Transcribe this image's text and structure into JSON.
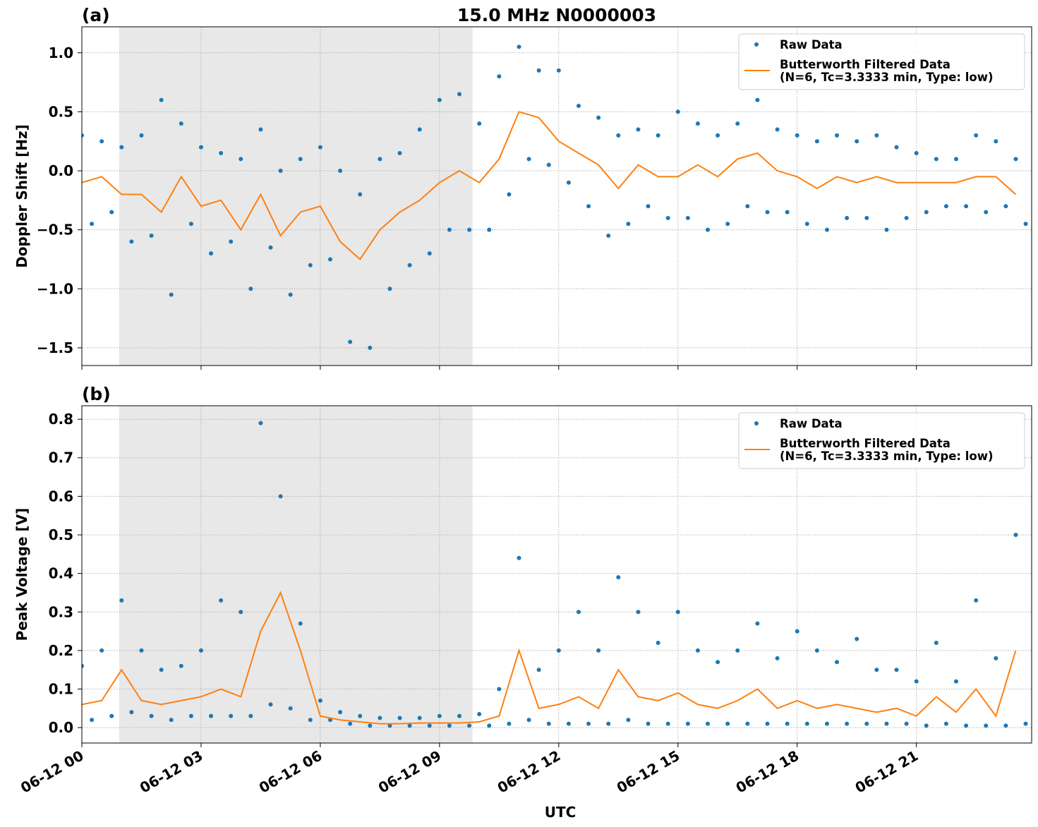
{
  "chart_data": [
    {
      "type": "scatter",
      "title": "15.0 MHz N0000003",
      "panel_label": "(a)",
      "ylabel": "Doppler Shift [Hz]",
      "xlim": [
        0,
        23.9
      ],
      "ylim": [
        -1.65,
        1.22
      ],
      "grid": true,
      "legend": "upper right",
      "shade": [
        0.94,
        9.83
      ],
      "xticks": [
        0,
        3,
        6,
        9,
        12,
        15,
        18,
        21
      ],
      "yticks": [
        {
          "value": -1.5,
          "label": "−1.5"
        },
        {
          "value": -1.0,
          "label": "−1.0"
        },
        {
          "value": -0.5,
          "label": "−0.5"
        },
        {
          "value": 0,
          "label": "0.0"
        },
        {
          "value": 0.5,
          "label": "0.5"
        },
        {
          "value": 1.0,
          "label": "1.0"
        }
      ],
      "series": [
        {
          "name": "Raw Data",
          "type": "scatter",
          "color": "#1f77b4",
          "x": [
            0,
            0.25,
            0.5,
            0.75,
            1,
            1.25,
            1.5,
            1.75,
            2,
            2.25,
            2.5,
            2.75,
            3,
            3.25,
            3.5,
            3.75,
            4,
            4.25,
            4.5,
            4.75,
            5,
            5.25,
            5.5,
            5.75,
            6,
            6.25,
            6.5,
            6.75,
            7,
            7.25,
            7.5,
            7.75,
            8,
            8.25,
            8.5,
            8.75,
            9,
            9.25,
            9.5,
            9.75,
            10,
            10.25,
            10.5,
            10.75,
            11,
            11.25,
            11.5,
            11.75,
            12,
            12.25,
            12.5,
            12.75,
            13,
            13.25,
            13.5,
            13.75,
            14,
            14.25,
            14.5,
            14.75,
            15,
            15.25,
            15.5,
            15.75,
            16,
            16.25,
            16.5,
            16.75,
            17,
            17.25,
            17.5,
            17.75,
            18,
            18.25,
            18.5,
            18.75,
            19,
            19.25,
            19.5,
            19.75,
            20,
            20.25,
            20.5,
            20.75,
            21,
            21.25,
            21.5,
            21.75,
            22,
            22.25,
            22.5,
            22.75,
            23,
            23.25,
            23.5,
            23.75
          ],
          "values": [
            0.3,
            -0.45,
            0.25,
            -0.35,
            0.2,
            -0.6,
            0.3,
            -0.55,
            0.6,
            -1.05,
            0.4,
            -0.45,
            0.2,
            -0.7,
            0.15,
            -0.6,
            0.1,
            -1.0,
            0.35,
            -0.65,
            0.0,
            -1.05,
            0.1,
            -0.8,
            0.2,
            -0.75,
            0.0,
            -1.45,
            -0.2,
            -1.5,
            0.1,
            -1.0,
            0.15,
            -0.8,
            0.35,
            -0.7,
            0.6,
            -0.5,
            0.65,
            -0.5,
            0.4,
            -0.5,
            0.8,
            -0.2,
            1.05,
            0.1,
            0.85,
            0.05,
            0.85,
            -0.1,
            0.55,
            -0.3,
            0.45,
            -0.55,
            0.3,
            -0.45,
            0.35,
            -0.3,
            0.3,
            -0.4,
            0.5,
            -0.4,
            0.4,
            -0.5,
            0.3,
            -0.45,
            0.4,
            -0.3,
            0.6,
            -0.35,
            0.35,
            -0.35,
            0.3,
            -0.45,
            0.25,
            -0.5,
            0.3,
            -0.4,
            0.25,
            -0.4,
            0.3,
            -0.5,
            0.2,
            -0.4,
            0.15,
            -0.35,
            0.1,
            -0.3,
            0.1,
            -0.3,
            0.3,
            -0.35,
            0.25,
            -0.3,
            0.1,
            -0.45
          ]
        },
        {
          "name": "Butterworth Filtered Data\n(N=6, Tc=3.3333 min, Type: low)",
          "type": "line",
          "color": "#ff7f0e",
          "x": [
            0,
            0.5,
            1,
            1.5,
            2,
            2.5,
            3,
            3.5,
            4,
            4.5,
            5,
            5.5,
            6,
            6.5,
            7,
            7.5,
            8,
            8.5,
            9,
            9.5,
            10,
            10.5,
            11,
            11.5,
            12,
            12.5,
            13,
            13.5,
            14,
            14.5,
            15,
            15.5,
            16,
            16.5,
            17,
            17.5,
            18,
            18.5,
            19,
            19.5,
            20,
            20.5,
            21,
            21.5,
            22,
            22.5,
            23,
            23.5
          ],
          "values": [
            -0.1,
            -0.05,
            -0.2,
            -0.2,
            -0.35,
            -0.05,
            -0.3,
            -0.25,
            -0.5,
            -0.2,
            -0.55,
            -0.35,
            -0.3,
            -0.6,
            -0.75,
            -0.5,
            -0.35,
            -0.25,
            -0.1,
            0.0,
            -0.1,
            0.1,
            0.5,
            0.45,
            0.25,
            0.15,
            0.05,
            -0.15,
            0.05,
            -0.05,
            -0.05,
            0.05,
            -0.05,
            0.1,
            0.15,
            0.0,
            -0.05,
            -0.15,
            -0.05,
            -0.1,
            -0.05,
            -0.1,
            -0.1,
            -0.1,
            -0.1,
            -0.05,
            -0.05,
            -0.2
          ]
        }
      ]
    },
    {
      "type": "scatter",
      "panel_label": "(b)",
      "ylabel": "Peak Voltage [V]",
      "xlabel": "UTC",
      "xlim": [
        0,
        23.9
      ],
      "ylim": [
        -0.04,
        0.835
      ],
      "grid": true,
      "legend": "upper right",
      "shade": [
        0.94,
        9.83
      ],
      "xticks": [
        {
          "value": 0,
          "label": "06-12 00"
        },
        {
          "value": 3,
          "label": "06-12 03"
        },
        {
          "value": 6,
          "label": "06-12 06"
        },
        {
          "value": 9,
          "label": "06-12 09"
        },
        {
          "value": 12,
          "label": "06-12 12"
        },
        {
          "value": 15,
          "label": "06-12 15"
        },
        {
          "value": 18,
          "label": "06-12 18"
        },
        {
          "value": 21,
          "label": "06-12 21"
        }
      ],
      "yticks": [
        {
          "value": 0,
          "label": "0.0"
        },
        0.1,
        0.2,
        0.3,
        0.4,
        0.5,
        0.6,
        0.7,
        0.8
      ],
      "series": [
        {
          "name": "Raw Data",
          "type": "scatter",
          "color": "#1f77b4",
          "x": [
            0,
            0.25,
            0.5,
            0.75,
            1,
            1.25,
            1.5,
            1.75,
            2,
            2.25,
            2.5,
            2.75,
            3,
            3.25,
            3.5,
            3.75,
            4,
            4.25,
            4.5,
            4.75,
            5,
            5.25,
            5.5,
            5.75,
            6,
            6.25,
            6.5,
            6.75,
            7,
            7.25,
            7.5,
            7.75,
            8,
            8.25,
            8.5,
            8.75,
            9,
            9.25,
            9.5,
            9.75,
            10,
            10.25,
            10.5,
            10.75,
            11,
            11.25,
            11.5,
            11.75,
            12,
            12.25,
            12.5,
            12.75,
            13,
            13.25,
            13.5,
            13.75,
            14,
            14.25,
            14.5,
            14.75,
            15,
            15.25,
            15.5,
            15.75,
            16,
            16.25,
            16.5,
            16.75,
            17,
            17.25,
            17.5,
            17.75,
            18,
            18.25,
            18.5,
            18.75,
            19,
            19.25,
            19.5,
            19.75,
            20,
            20.25,
            20.5,
            20.75,
            21,
            21.25,
            21.5,
            21.75,
            22,
            22.25,
            22.5,
            22.75,
            23,
            23.25,
            23.5,
            23.75
          ],
          "values": [
            0.16,
            0.02,
            0.2,
            0.03,
            0.33,
            0.04,
            0.2,
            0.03,
            0.15,
            0.02,
            0.16,
            0.03,
            0.2,
            0.03,
            0.33,
            0.03,
            0.3,
            0.03,
            0.79,
            0.06,
            0.6,
            0.05,
            0.27,
            0.02,
            0.07,
            0.02,
            0.04,
            0.01,
            0.03,
            0.005,
            0.025,
            0.005,
            0.025,
            0.005,
            0.025,
            0.005,
            0.03,
            0.005,
            0.03,
            0.005,
            0.035,
            0.005,
            0.1,
            0.01,
            0.44,
            0.02,
            0.15,
            0.01,
            0.2,
            0.01,
            0.3,
            0.01,
            0.2,
            0.01,
            0.39,
            0.02,
            0.3,
            0.01,
            0.22,
            0.01,
            0.3,
            0.01,
            0.2,
            0.01,
            0.17,
            0.01,
            0.2,
            0.01,
            0.27,
            0.01,
            0.18,
            0.01,
            0.25,
            0.01,
            0.2,
            0.01,
            0.17,
            0.01,
            0.23,
            0.01,
            0.15,
            0.01,
            0.15,
            0.01,
            0.12,
            0.005,
            0.22,
            0.01,
            0.12,
            0.005,
            0.33,
            0.005,
            0.18,
            0.005,
            0.5,
            0.01
          ]
        },
        {
          "name": "Butterworth Filtered Data\n(N=6, Tc=3.3333 min, Type: low)",
          "type": "line",
          "color": "#ff7f0e",
          "x": [
            0,
            0.5,
            1,
            1.5,
            2,
            2.5,
            3,
            3.5,
            4,
            4.5,
            5,
            5.5,
            6,
            6.5,
            7,
            7.5,
            8,
            8.5,
            9,
            9.5,
            10,
            10.5,
            11,
            11.5,
            12,
            12.5,
            13,
            13.5,
            14,
            14.5,
            15,
            15.5,
            16,
            16.5,
            17,
            17.5,
            18,
            18.5,
            19,
            19.5,
            20,
            20.5,
            21,
            21.5,
            22,
            22.5,
            23,
            23.5
          ],
          "values": [
            0.06,
            0.07,
            0.15,
            0.07,
            0.06,
            0.07,
            0.08,
            0.1,
            0.08,
            0.25,
            0.35,
            0.2,
            0.03,
            0.02,
            0.015,
            0.01,
            0.01,
            0.012,
            0.012,
            0.012,
            0.015,
            0.03,
            0.2,
            0.05,
            0.06,
            0.08,
            0.05,
            0.15,
            0.08,
            0.07,
            0.09,
            0.06,
            0.05,
            0.07,
            0.1,
            0.05,
            0.07,
            0.05,
            0.06,
            0.05,
            0.04,
            0.05,
            0.03,
            0.08,
            0.04,
            0.1,
            0.03,
            0.2
          ]
        }
      ]
    }
  ]
}
